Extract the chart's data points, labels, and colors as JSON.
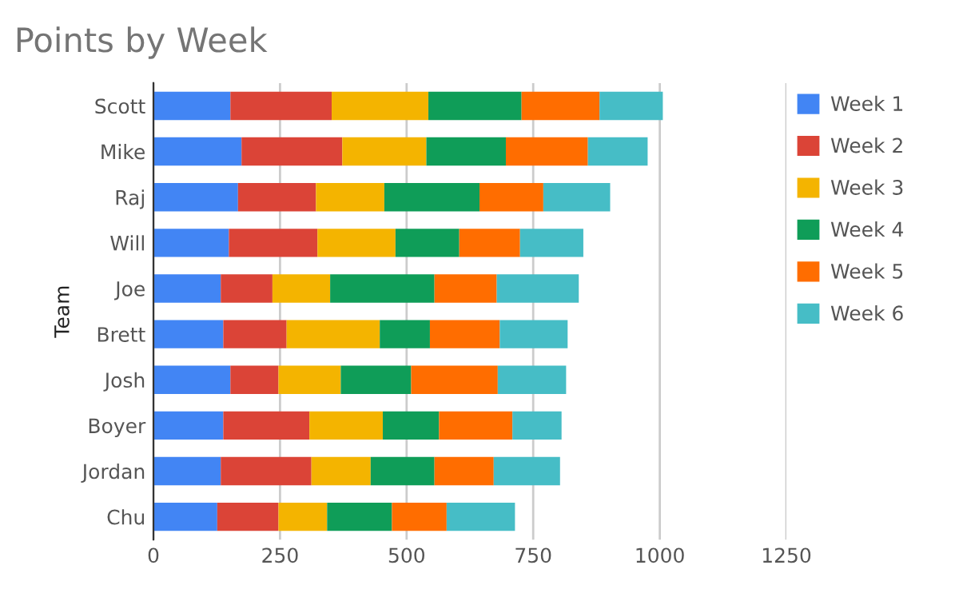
{
  "chart_data": {
    "type": "bar",
    "orientation": "horizontal",
    "stacked": true,
    "title": "Points by Week",
    "ylabel": "Team",
    "categories": [
      "Scott",
      "Mike",
      "Raj",
      "Will",
      "Joe",
      "Brett",
      "Josh",
      "Boyer",
      "Jordan",
      "Chu"
    ],
    "series": [
      {
        "name": "Week 1",
        "color": "#4285f4",
        "values": [
          152,
          174,
          167,
          149,
          133,
          138,
          152,
          138,
          133,
          126
        ]
      },
      {
        "name": "Week 2",
        "color": "#db4437",
        "values": [
          200,
          199,
          154,
          175,
          102,
          125,
          95,
          170,
          179,
          121
        ]
      },
      {
        "name": "Week 3",
        "color": "#f4b400",
        "values": [
          191,
          166,
          135,
          154,
          114,
          184,
          123,
          145,
          117,
          96
        ]
      },
      {
        "name": "Week 4",
        "color": "#0f9d58",
        "values": [
          184,
          157,
          188,
          126,
          206,
          99,
          139,
          111,
          126,
          128
        ]
      },
      {
        "name": "Week 5",
        "color": "#ff6d00",
        "values": [
          154,
          162,
          126,
          120,
          123,
          138,
          171,
          145,
          117,
          108
        ]
      },
      {
        "name": "Week 6",
        "color": "#46bdc6",
        "values": [
          125,
          118,
          132,
          125,
          162,
          134,
          135,
          97,
          131,
          135
        ]
      }
    ],
    "xlim": [
      0,
      1250
    ],
    "xticks": [
      0,
      250,
      500,
      750,
      1000,
      1250
    ],
    "grid": "x",
    "legend": "right"
  }
}
